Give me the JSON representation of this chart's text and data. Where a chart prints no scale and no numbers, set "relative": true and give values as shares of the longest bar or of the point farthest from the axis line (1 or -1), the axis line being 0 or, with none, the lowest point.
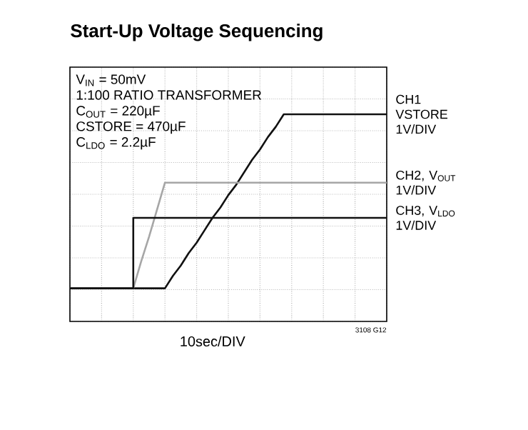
{
  "chart_data": {
    "type": "line",
    "title": "Start-Up Voltage Sequencing",
    "xlabel": "10sec/DIV",
    "relative": true,
    "grid": true,
    "marker": "none",
    "annotations": [
      "V$_{IN}$ = 50mV",
      "1:100 RATIO TRANSFORMER",
      "C$_{OUT}$ = 220µF",
      "CSTORE = 470µF",
      "C$_{LDO}$ = 2.2µF",
      "3108 G12"
    ],
    "categories": [
      null,
      null,
      null,
      null,
      null,
      null,
      null,
      null,
      null,
      null,
      null,
      null,
      null,
      null,
      null,
      null,
      null,
      null,
      null,
      null,
      null,
      null,
      null,
      null,
      null,
      null,
      null,
      null,
      null,
      null,
      null,
      null,
      null,
      null,
      null,
      null,
      null,
      null,
      null,
      null,
      null
    ],
    "series": [
      {
        "name": "CH1 VSTORE 1V/DIV",
        "color": "#111111",
        "type": "line",
        "values": [
          0.16,
          0.16,
          0.16,
          0.16,
          0.16,
          0.16,
          0.16,
          0.16,
          0.16,
          0.16,
          0.16,
          0.16,
          0.16,
          0.22,
          0.27,
          0.33,
          0.38,
          0.44,
          0.5,
          0.55,
          0.61,
          0.66,
          0.72,
          0.78,
          0.83,
          0.89,
          0.94,
          1.0,
          1.0,
          1.0,
          1.0,
          1.0,
          1.0,
          1.0,
          1.0,
          1.0,
          1.0,
          1.0,
          1.0,
          1.0,
          1.0
        ]
      },
      {
        "name": "CH2, V$_{OUT}$ 1V/DIV",
        "color": "#a6a6a6",
        "type": "line",
        "values": [
          0.16,
          0.16,
          0.16,
          0.16,
          0.16,
          0.16,
          0.16,
          0.16,
          0.16,
          0.29,
          0.41,
          0.54,
          0.67,
          0.67,
          0.67,
          0.67,
          0.67,
          0.67,
          0.67,
          0.67,
          0.67,
          0.67,
          0.67,
          0.67,
          0.67,
          0.67,
          0.67,
          0.67,
          0.67,
          0.67,
          0.67,
          0.67,
          0.67,
          0.67,
          0.67,
          0.67,
          0.67,
          0.67,
          0.67,
          0.67,
          0.67
        ]
      },
      {
        "name": "CH3, V$_{LDO}$ 1V/DIV",
        "color": "#111111",
        "type": "step",
        "values": [
          0.16,
          0.16,
          0.16,
          0.16,
          0.16,
          0.16,
          0.16,
          0.16,
          0.5,
          0.5,
          0.5,
          0.5,
          0.5,
          0.5,
          0.5,
          0.5,
          0.5,
          0.5,
          0.5,
          0.5,
          0.5,
          0.5,
          0.5,
          0.5,
          0.5,
          0.5,
          0.5,
          0.5,
          0.5,
          0.5,
          0.5,
          0.5,
          0.5,
          0.5,
          0.5,
          0.5,
          0.5,
          0.5,
          0.5,
          0.5,
          0.5
        ]
      }
    ]
  }
}
